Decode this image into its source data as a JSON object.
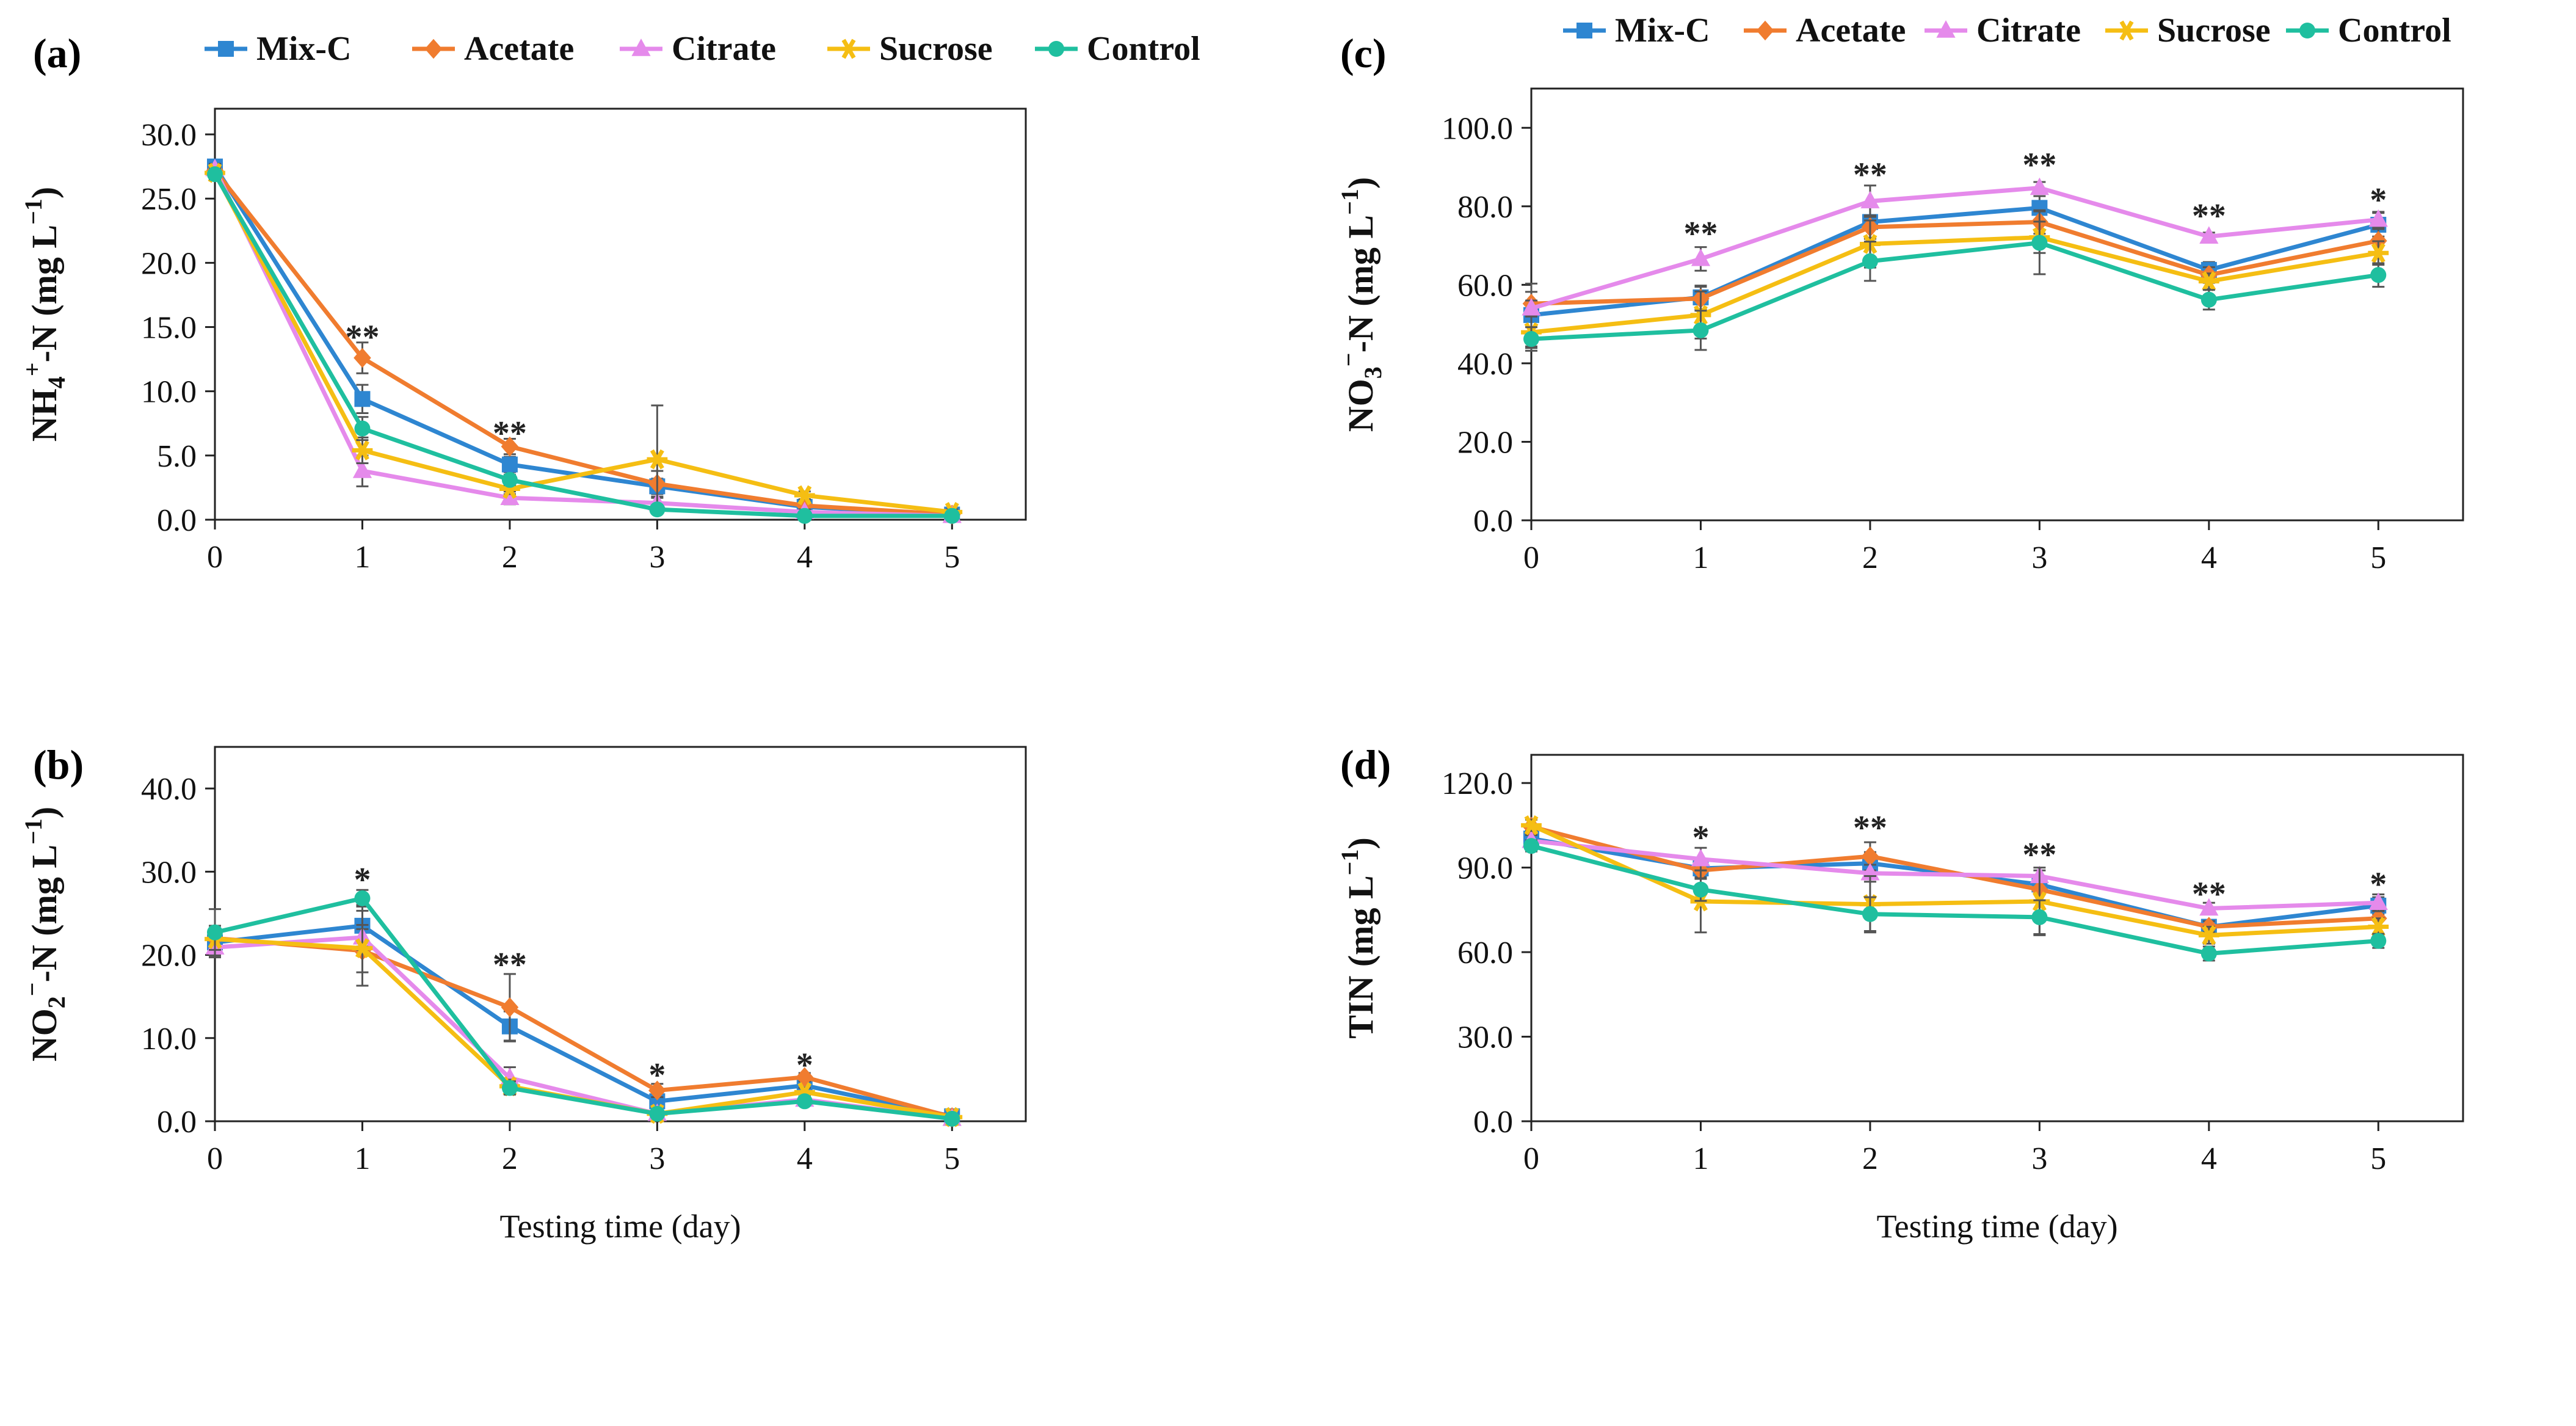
{
  "series_style": [
    {
      "name": "Mix-C",
      "color": "#2E86D1",
      "marker": "square"
    },
    {
      "name": "Acetate",
      "color": "#F07C2F",
      "marker": "diamond"
    },
    {
      "name": "Citrate",
      "color": "#E58AEB",
      "marker": "triangle"
    },
    {
      "name": "Sucrose",
      "color": "#F5BE13",
      "marker": "star"
    },
    {
      "name": "Control",
      "color": "#1FBF9F",
      "marker": "circle"
    }
  ],
  "axis_color": "#222222",
  "error_color": "#555555",
  "chart_data": [
    {
      "panel": "(a)",
      "type": "line",
      "ylabel": {
        "main": "NH",
        "sub": "4",
        "sup": "+",
        "rest": "-N (mg L",
        "sup2": "−1",
        "close": ")"
      },
      "xlabel": "",
      "x": [
        0,
        1,
        2,
        3,
        4,
        5
      ],
      "xlim": [
        0,
        5.5
      ],
      "ylim": [
        0,
        32
      ],
      "yticks": [
        0,
        5,
        10,
        15,
        20,
        25,
        30
      ],
      "ytick_labels": [
        "0.0",
        "5.0",
        "10.0",
        "15.0",
        "20.0",
        "25.0",
        "30.0"
      ],
      "xtick_labels": [
        "0",
        "1",
        "2",
        "3",
        "4",
        "5"
      ],
      "legend": true,
      "series": [
        {
          "name": "Mix-C",
          "values": [
            27.5,
            9.4,
            4.3,
            2.6,
            1.0,
            0.4
          ],
          "errors": [
            0.5,
            1.1,
            0.6,
            0.6,
            0.3,
            0.2
          ]
        },
        {
          "name": "Acetate",
          "values": [
            27.2,
            12.6,
            5.7,
            2.8,
            1.1,
            0.4
          ],
          "errors": [
            0.5,
            1.2,
            0.6,
            1.0,
            0.3,
            0.2
          ]
        },
        {
          "name": "Citrate",
          "values": [
            27.3,
            3.8,
            1.7,
            1.3,
            0.6,
            0.3
          ],
          "errors": [
            0.4,
            1.2,
            0.5,
            0.4,
            0.2,
            0.1
          ]
        },
        {
          "name": "Sucrose",
          "values": [
            27.0,
            5.4,
            2.4,
            4.7,
            1.9,
            0.6
          ],
          "errors": [
            0.4,
            1.0,
            0.4,
            4.2,
            0.3,
            0.2
          ]
        },
        {
          "name": "Control",
          "values": [
            26.9,
            7.1,
            3.1,
            0.8,
            0.3,
            0.3
          ],
          "errors": [
            0.4,
            0.9,
            0.4,
            0.3,
            0.1,
            0.1
          ]
        }
      ],
      "annotations": [
        {
          "x": 1,
          "text": "**",
          "y": 14.2
        },
        {
          "x": 2,
          "text": "**",
          "y": 6.7
        }
      ]
    },
    {
      "panel": "(b)",
      "type": "line",
      "ylabel": {
        "main": "NO",
        "sub": "2",
        "sup": "−",
        "rest": "-N (mg L",
        "sup2": "−1",
        "close": ")"
      },
      "xlabel": "Testing time (day)",
      "x": [
        0,
        1,
        2,
        3,
        4,
        5
      ],
      "xlim": [
        0,
        5.5
      ],
      "ylim": [
        0,
        45
      ],
      "yticks": [
        0,
        10,
        20,
        30,
        40
      ],
      "ytick_labels": [
        "0.0",
        "10.0",
        "20.0",
        "30.0",
        "40.0"
      ],
      "xtick_labels": [
        "0",
        "1",
        "2",
        "3",
        "4",
        "5"
      ],
      "legend": false,
      "series": [
        {
          "name": "Mix-C",
          "values": [
            21.5,
            23.5,
            11.4,
            2.4,
            4.3,
            0.6
          ],
          "errors": [
            1.5,
            2.5,
            1.8,
            0.5,
            0.7,
            0.2
          ]
        },
        {
          "name": "Acetate",
          "values": [
            22.0,
            20.5,
            13.7,
            3.7,
            5.3,
            0.5
          ],
          "errors": [
            1.5,
            2.6,
            4.0,
            0.8,
            0.5,
            0.2
          ]
        },
        {
          "name": "Citrate",
          "values": [
            20.9,
            22.1,
            5.2,
            0.9,
            2.6,
            0.3
          ],
          "errors": [
            1.2,
            1.5,
            1.3,
            0.3,
            0.4,
            0.1
          ]
        },
        {
          "name": "Sucrose",
          "values": [
            21.9,
            20.8,
            4.2,
            0.9,
            3.5,
            0.5
          ],
          "errors": [
            1.3,
            4.5,
            0.8,
            0.3,
            0.5,
            0.1
          ]
        },
        {
          "name": "Control",
          "values": [
            22.7,
            26.8,
            4.0,
            0.9,
            2.4,
            0.3
          ],
          "errors": [
            2.8,
            1.0,
            0.8,
            0.3,
            0.4,
            0.1
          ]
        }
      ],
      "annotations": [
        {
          "x": 1,
          "text": "*",
          "y": 29.0
        },
        {
          "x": 2,
          "text": "**",
          "y": 18.8
        },
        {
          "x": 3,
          "text": "*",
          "y": 5.5
        },
        {
          "x": 4,
          "text": "*",
          "y": 6.7
        }
      ]
    },
    {
      "panel": "(c)",
      "type": "line",
      "ylabel": {
        "main": "NO",
        "sub": "3",
        "sup": "−",
        "rest": "-N (mg L",
        "sup2": "−1",
        "close": ")"
      },
      "xlabel": "",
      "x": [
        0,
        1,
        2,
        3,
        4,
        5
      ],
      "xlim": [
        0,
        5.5
      ],
      "ylim": [
        0,
        110
      ],
      "yticks": [
        0,
        20,
        40,
        60,
        80,
        100
      ],
      "ytick_labels": [
        "0.0",
        "20.0",
        "40.0",
        "60.0",
        "80.0",
        "100.0"
      ],
      "xtick_labels": [
        "0",
        "1",
        "2",
        "3",
        "4",
        "5"
      ],
      "legend": true,
      "series": [
        {
          "name": "Mix-C",
          "values": [
            52.3,
            56.8,
            76.0,
            79.6,
            63.8,
            75.3
          ],
          "errors": [
            8,
            3,
            4,
            3,
            2,
            3
          ]
        },
        {
          "name": "Acetate",
          "values": [
            55.2,
            56.5,
            74.7,
            76.0,
            62.5,
            71.2
          ],
          "errors": [
            3,
            3,
            3,
            3,
            2,
            3
          ]
        },
        {
          "name": "Citrate",
          "values": [
            54.0,
            66.6,
            81.3,
            84.7,
            72.3,
            76.6
          ],
          "errors": [
            2,
            3,
            4,
            1.5,
            1,
            2
          ]
        },
        {
          "name": "Sucrose",
          "values": [
            47.9,
            52.3,
            70.4,
            72.1,
            60.9,
            68.1
          ],
          "errors": [
            4,
            6,
            6,
            4,
            2,
            3
          ]
        },
        {
          "name": "Control",
          "values": [
            46.2,
            48.4,
            66.0,
            70.7,
            56.2,
            62.5
          ],
          "errors": [
            3,
            5,
            5,
            8,
            2.5,
            3
          ]
        }
      ],
      "annotations": [
        {
          "x": 1,
          "text": "**",
          "y": 73.0
        },
        {
          "x": 2,
          "text": "**",
          "y": 88.0
        },
        {
          "x": 3,
          "text": "**",
          "y": 90.5
        },
        {
          "x": 4,
          "text": "**",
          "y": 77.5
        },
        {
          "x": 5,
          "text": "*",
          "y": 81.5
        }
      ]
    },
    {
      "panel": "(d)",
      "type": "line",
      "ylabel": {
        "main": "TIN (mg L",
        "sub": "",
        "sup": "",
        "rest": "",
        "sup2": "−1",
        "close": ")"
      },
      "xlabel": "Testing time (day)",
      "x": [
        0,
        1,
        2,
        3,
        4,
        5
      ],
      "xlim": [
        0,
        5.5
      ],
      "ylim": [
        0,
        130
      ],
      "yticks": [
        0,
        30,
        60,
        90,
        120
      ],
      "ytick_labels": [
        "0.0",
        "30.0",
        "60.0",
        "90.0",
        "120.0"
      ],
      "xtick_labels": [
        "0",
        "1",
        "2",
        "3",
        "4",
        "5"
      ],
      "legend": false,
      "series": [
        {
          "name": "Mix-C",
          "values": [
            100.3,
            89.7,
            91.5,
            84.0,
            69.0,
            76.5
          ],
          "errors": [
            3,
            3,
            4,
            3,
            2,
            3
          ]
        },
        {
          "name": "Acetate",
          "values": [
            104.5,
            89.0,
            94.0,
            82.2,
            69.0,
            72.0
          ],
          "errors": [
            2.5,
            3,
            5,
            4,
            2,
            3
          ]
        },
        {
          "name": "Citrate",
          "values": [
            99.5,
            93.0,
            88.0,
            87.0,
            75.5,
            77.5
          ],
          "errors": [
            2,
            4,
            3,
            2,
            2,
            3
          ]
        },
        {
          "name": "Sucrose",
          "values": [
            105.0,
            78.0,
            77.0,
            78.0,
            66.0,
            69.0
          ],
          "errors": [
            2,
            11,
            10,
            12,
            3,
            3
          ]
        },
        {
          "name": "Control",
          "values": [
            97.7,
            82.2,
            73.5,
            72.4,
            59.5,
            64.0
          ],
          "errors": [
            2,
            4,
            6,
            6,
            2.5,
            2.5
          ]
        }
      ],
      "annotations": [
        {
          "x": 1,
          "text": "*",
          "y": 100.5
        },
        {
          "x": 2,
          "text": "**",
          "y": 104.0
        },
        {
          "x": 3,
          "text": "**",
          "y": 94.5
        },
        {
          "x": 4,
          "text": "**",
          "y": 80.5
        },
        {
          "x": 5,
          "text": "*",
          "y": 84.0
        }
      ]
    }
  ]
}
